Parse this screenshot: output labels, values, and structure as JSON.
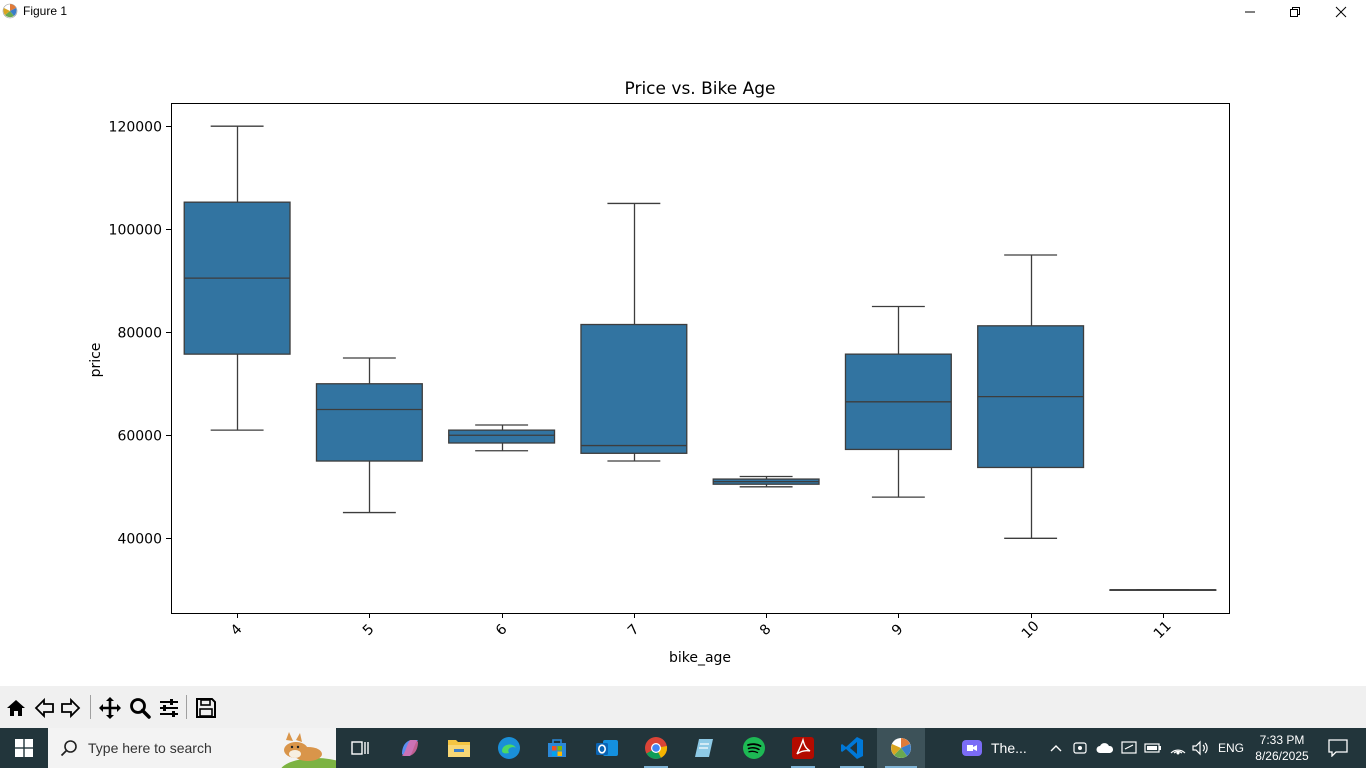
{
  "window": {
    "title": "Figure 1"
  },
  "chart_data": {
    "type": "box",
    "title": "Price vs. Bike Age",
    "xlabel": "bike_age",
    "ylabel": "price",
    "categories": [
      "4",
      "5",
      "6",
      "7",
      "8",
      "9",
      "10",
      "11"
    ],
    "yticks": [
      40000,
      60000,
      80000,
      100000,
      120000
    ],
    "ylim": [
      25500,
      124500
    ],
    "color": "#3274a1",
    "boxes": [
      {
        "category": "4",
        "whislo": 61000,
        "q1": 75750,
        "median": 90500,
        "q3": 105250,
        "whishi": 120000
      },
      {
        "category": "5",
        "whislo": 45000,
        "q1": 55000,
        "median": 65000,
        "q3": 70000,
        "whishi": 75000
      },
      {
        "category": "6",
        "whislo": 57000,
        "q1": 58500,
        "median": 60000,
        "q3": 61000,
        "whishi": 62000
      },
      {
        "category": "7",
        "whislo": 55000,
        "q1": 56500,
        "median": 58000,
        "q3": 81500,
        "whishi": 105000
      },
      {
        "category": "8",
        "whislo": 50000,
        "q1": 50500,
        "median": 51000,
        "q3": 51500,
        "whishi": 52000
      },
      {
        "category": "9",
        "whislo": 48000,
        "q1": 57250,
        "median": 66500,
        "q3": 75750,
        "whishi": 85000
      },
      {
        "category": "10",
        "whislo": 40000,
        "q1": 53750,
        "median": 67500,
        "q3": 81250,
        "whishi": 95000
      },
      {
        "category": "11",
        "whislo": 30000,
        "q1": 30000,
        "median": 30000,
        "q3": 30000,
        "whishi": 30000
      }
    ]
  },
  "toolbar": {
    "tools": [
      "home-icon",
      "back-icon",
      "forward-icon",
      "pan-icon",
      "zoom-icon",
      "configure-subplots-icon",
      "save-icon"
    ]
  },
  "taskbar": {
    "search_placeholder": "Type here to search",
    "zoom_app_label": "The...",
    "language": "ENG",
    "time": "7:33 PM",
    "date": "8/26/2025"
  }
}
